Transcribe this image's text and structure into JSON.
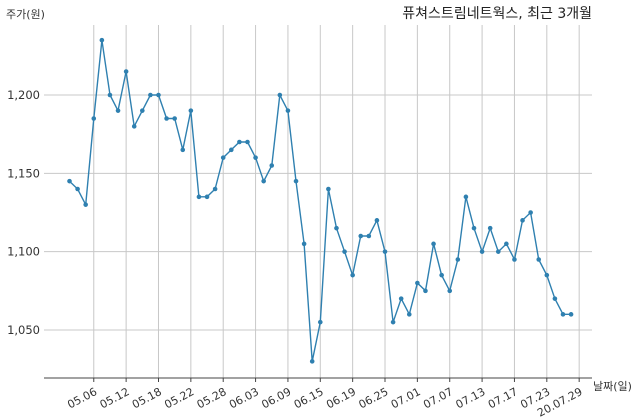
{
  "chart_data": {
    "type": "line",
    "title": "퓨쳐스트림네트웍스, 최근 3개월",
    "ylabel": "주가(원)",
    "xlabel": "날짜(일)",
    "ylim": [
      1015,
      1245
    ],
    "yticks": [
      1050,
      1100,
      1150,
      1200
    ],
    "ytick_labels": [
      "1,050",
      "1,100",
      "1,150",
      "1,200"
    ],
    "xtick_labels": [
      "05.06",
      "05.12",
      "05.18",
      "05.22",
      "05.28",
      "06.03",
      "06.09",
      "06.15",
      "06.19",
      "06.25",
      "07.01",
      "07.07",
      "07.13",
      "07.17",
      "07.23",
      "20.07.29"
    ],
    "xtick_index": [
      3,
      7,
      11,
      15,
      19,
      23,
      27,
      31,
      35,
      39,
      43,
      47,
      51,
      55,
      59,
      63
    ],
    "grid": true,
    "color": "#2f80b0",
    "series": [
      {
        "values": [
          1145,
          1140,
          1130,
          1185,
          1235,
          1200,
          1190,
          1215,
          1180,
          1190,
          1200,
          1200,
          1185,
          1185,
          1165,
          1190,
          1135,
          1135,
          1140,
          1160,
          1165,
          1170,
          1170,
          1160,
          1145,
          1155,
          1200,
          1190,
          1145,
          1105,
          1030,
          1055,
          1140,
          1115,
          1100,
          1085,
          1110,
          1110,
          1120,
          1100,
          1055,
          1070,
          1060,
          1080,
          1075,
          1105,
          1085,
          1075,
          1095,
          1135,
          1115,
          1100,
          1115,
          1100,
          1105,
          1095,
          1120,
          1125,
          1095,
          1085,
          1070,
          1060,
          1060
        ]
      }
    ]
  }
}
